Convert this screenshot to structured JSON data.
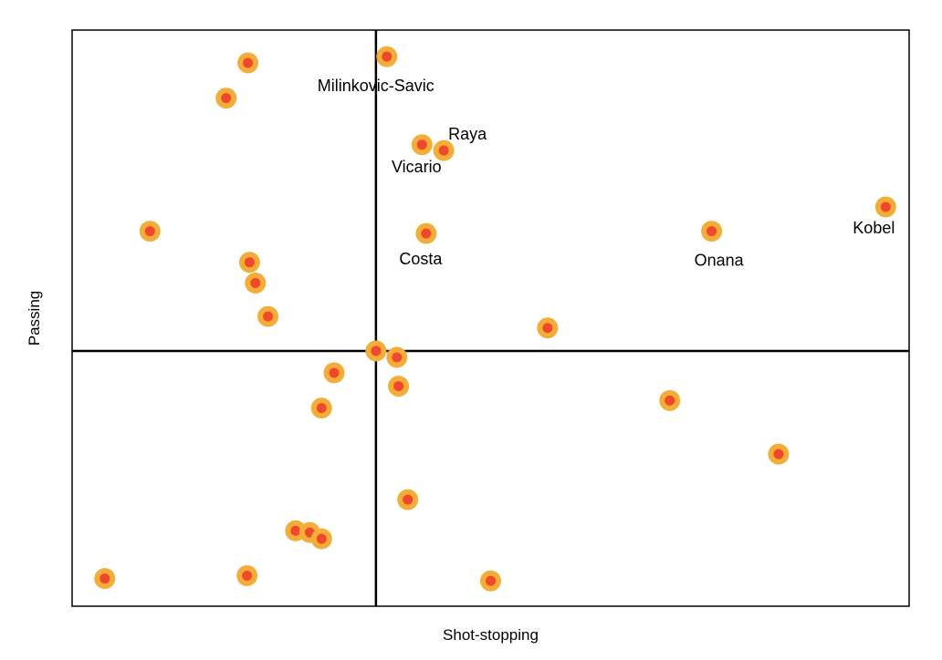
{
  "chart_data": {
    "type": "scatter",
    "title": "",
    "xlabel": "Shot-stopping",
    "ylabel": "Passing",
    "xlim": [
      0,
      100
    ],
    "ylim": [
      0,
      100
    ],
    "grid": false,
    "show_ticks": false,
    "quadrant_lines": {
      "x": 36.3,
      "y": 44.3
    },
    "colors": {
      "outer": "#f5ad3a",
      "inner": "#f0482b",
      "frame": "#000000"
    },
    "points": [
      {
        "x": 21.0,
        "y": 94.3,
        "label": ""
      },
      {
        "x": 18.4,
        "y": 88.2,
        "label": ""
      },
      {
        "x": 37.6,
        "y": 95.4,
        "label": "Milinkovic-Savic"
      },
      {
        "x": 41.8,
        "y": 80.1,
        "label": "Vicario"
      },
      {
        "x": 44.4,
        "y": 79.1,
        "label": "Raya"
      },
      {
        "x": 9.3,
        "y": 65.1,
        "label": ""
      },
      {
        "x": 42.3,
        "y": 64.7,
        "label": "Costa"
      },
      {
        "x": 76.4,
        "y": 65.1,
        "label": "Onana"
      },
      {
        "x": 97.2,
        "y": 69.3,
        "label": "Kobel"
      },
      {
        "x": 21.2,
        "y": 59.7,
        "label": ""
      },
      {
        "x": 21.9,
        "y": 56.1,
        "label": ""
      },
      {
        "x": 23.4,
        "y": 50.3,
        "label": ""
      },
      {
        "x": 56.8,
        "y": 48.3,
        "label": ""
      },
      {
        "x": 36.3,
        "y": 44.3,
        "label": ""
      },
      {
        "x": 38.8,
        "y": 43.2,
        "label": ""
      },
      {
        "x": 31.3,
        "y": 40.5,
        "label": ""
      },
      {
        "x": 39.0,
        "y": 38.2,
        "label": ""
      },
      {
        "x": 29.8,
        "y": 34.4,
        "label": ""
      },
      {
        "x": 71.4,
        "y": 35.7,
        "label": ""
      },
      {
        "x": 84.4,
        "y": 26.4,
        "label": ""
      },
      {
        "x": 40.1,
        "y": 18.5,
        "label": ""
      },
      {
        "x": 26.7,
        "y": 13.1,
        "label": ""
      },
      {
        "x": 28.4,
        "y": 12.8,
        "label": ""
      },
      {
        "x": 29.8,
        "y": 11.7,
        "label": ""
      },
      {
        "x": 3.9,
        "y": 4.8,
        "label": ""
      },
      {
        "x": 20.9,
        "y": 5.3,
        "label": ""
      },
      {
        "x": 50.0,
        "y": 4.4,
        "label": ""
      }
    ]
  }
}
